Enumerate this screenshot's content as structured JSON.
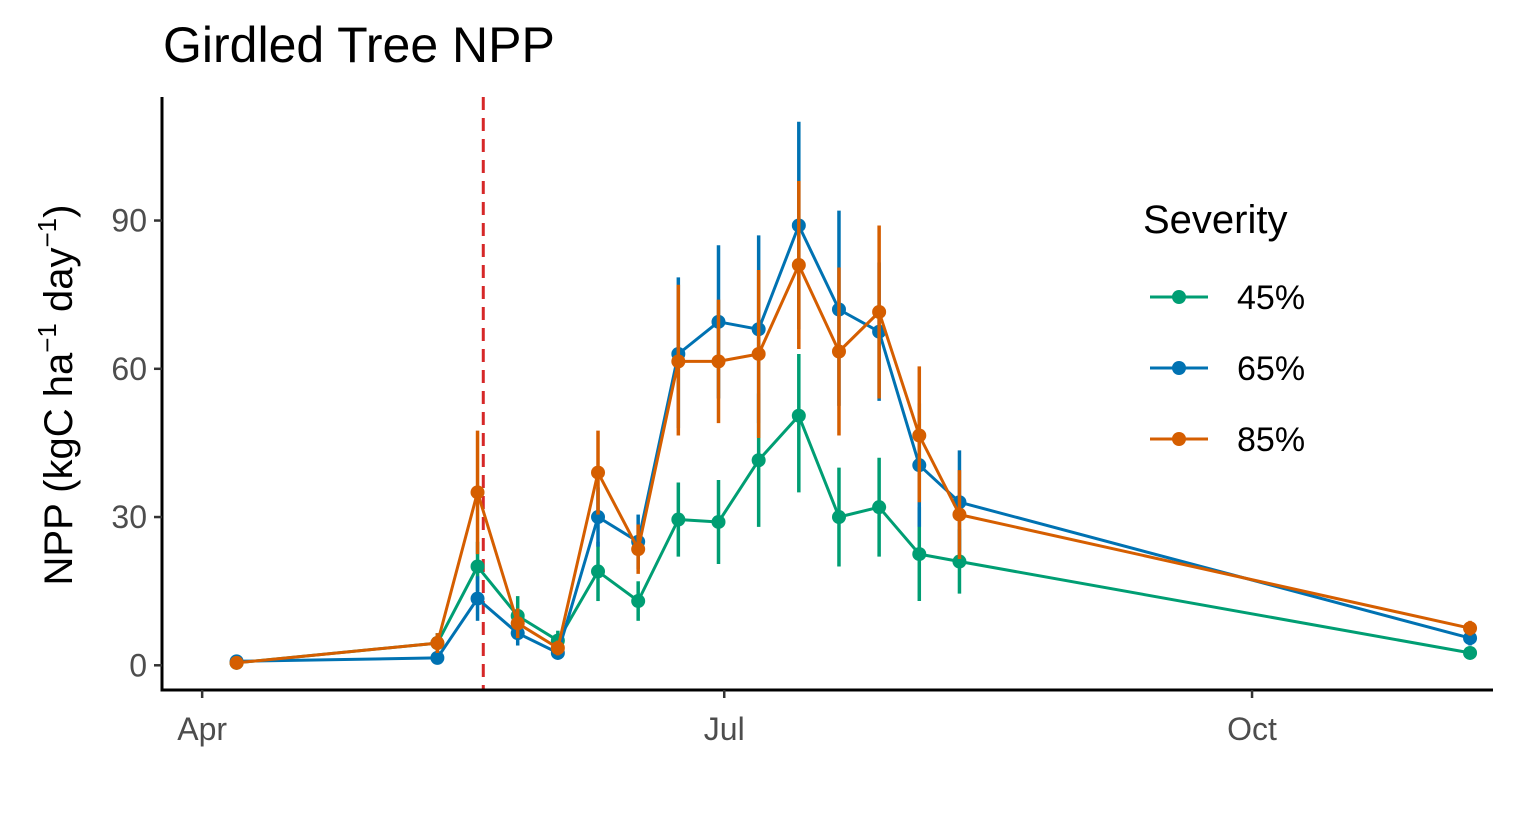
{
  "chart_data": {
    "type": "line",
    "title": "Girdled Tree NPP",
    "ylabel_parts": [
      "NPP (kgC ha",
      "−1",
      " day",
      "−1",
      ")"
    ],
    "xlabel": "",
    "ylim": [
      -5,
      115
    ],
    "y_ticks": [
      0,
      30,
      60,
      90
    ],
    "x_domain": [
      "2021-03-25",
      "2021-11-12"
    ],
    "x_ticks": [
      {
        "date": "2021-04-01",
        "label": "Apr"
      },
      {
        "date": "2021-07-01",
        "label": "Jul"
      },
      {
        "date": "2021-10-01",
        "label": "Oct"
      }
    ],
    "reference_line": {
      "date": "2021-05-20",
      "color": "#d62728",
      "style": "dashed"
    },
    "grid": false,
    "legend": {
      "title": "Severity",
      "position": "right"
    },
    "series": [
      {
        "name": "45%",
        "color": "#009E73",
        "points": [
          {
            "x": "2021-04-07",
            "y": 0.5,
            "lo": 0,
            "hi": 1.5
          },
          {
            "x": "2021-05-12",
            "y": 4.5,
            "lo": 2.5,
            "hi": 6.5
          },
          {
            "x": "2021-05-19",
            "y": 20,
            "lo": 15,
            "hi": 25
          },
          {
            "x": "2021-05-26",
            "y": 10,
            "lo": 6,
            "hi": 14
          },
          {
            "x": "2021-06-02",
            "y": 5,
            "lo": 3,
            "hi": 7
          },
          {
            "x": "2021-06-09",
            "y": 19,
            "lo": 13,
            "hi": 25
          },
          {
            "x": "2021-06-16",
            "y": 13,
            "lo": 9,
            "hi": 17
          },
          {
            "x": "2021-06-23",
            "y": 29.5,
            "lo": 22,
            "hi": 37
          },
          {
            "x": "2021-06-30",
            "y": 29,
            "lo": 20.5,
            "hi": 37.5
          },
          {
            "x": "2021-07-07",
            "y": 41.5,
            "lo": 28,
            "hi": 55
          },
          {
            "x": "2021-07-14",
            "y": 50.5,
            "lo": 35,
            "hi": 63
          },
          {
            "x": "2021-07-21",
            "y": 30,
            "lo": 20,
            "hi": 40
          },
          {
            "x": "2021-07-28",
            "y": 32,
            "lo": 22,
            "hi": 42
          },
          {
            "x": "2021-08-04",
            "y": 22.5,
            "lo": 13,
            "hi": 32
          },
          {
            "x": "2021-08-11",
            "y": 21,
            "lo": 14.5,
            "hi": 27.5
          },
          {
            "x": "2021-11-08",
            "y": 2.5,
            "lo": 1.5,
            "hi": 3.5
          }
        ]
      },
      {
        "name": "65%",
        "color": "#0072B2",
        "points": [
          {
            "x": "2021-04-07",
            "y": 0.8,
            "lo": 0.2,
            "hi": 1.4
          },
          {
            "x": "2021-05-12",
            "y": 1.5,
            "lo": 0.5,
            "hi": 2.5
          },
          {
            "x": "2021-05-19",
            "y": 13.5,
            "lo": 9,
            "hi": 18
          },
          {
            "x": "2021-05-26",
            "y": 6.5,
            "lo": 4,
            "hi": 9
          },
          {
            "x": "2021-06-02",
            "y": 2.5,
            "lo": 1.5,
            "hi": 3.5
          },
          {
            "x": "2021-06-09",
            "y": 30,
            "lo": 24,
            "hi": 36
          },
          {
            "x": "2021-06-16",
            "y": 25,
            "lo": 19.5,
            "hi": 30.5
          },
          {
            "x": "2021-06-23",
            "y": 63,
            "lo": 48,
            "hi": 78.5
          },
          {
            "x": "2021-06-30",
            "y": 69.5,
            "lo": 54,
            "hi": 85
          },
          {
            "x": "2021-07-07",
            "y": 68,
            "lo": 49,
            "hi": 87
          },
          {
            "x": "2021-07-14",
            "y": 89,
            "lo": 68,
            "hi": 110
          },
          {
            "x": "2021-07-21",
            "y": 72,
            "lo": 52.5,
            "hi": 92
          },
          {
            "x": "2021-07-28",
            "y": 67.5,
            "lo": 53.5,
            "hi": 81.5
          },
          {
            "x": "2021-08-04",
            "y": 40.5,
            "lo": 28,
            "hi": 53
          },
          {
            "x": "2021-08-11",
            "y": 33,
            "lo": 23,
            "hi": 43.5
          },
          {
            "x": "2021-11-08",
            "y": 5.5,
            "lo": 4,
            "hi": 7
          }
        ]
      },
      {
        "name": "85%",
        "color": "#D55E00",
        "points": [
          {
            "x": "2021-04-07",
            "y": 0.5,
            "lo": 0,
            "hi": 1.5
          },
          {
            "x": "2021-05-12",
            "y": 4.5,
            "lo": 2.5,
            "hi": 6.5
          },
          {
            "x": "2021-05-19",
            "y": 35,
            "lo": 22.5,
            "hi": 47.5
          },
          {
            "x": "2021-05-26",
            "y": 8.5,
            "lo": 5.5,
            "hi": 11.5
          },
          {
            "x": "2021-06-02",
            "y": 3.5,
            "lo": 2,
            "hi": 5
          },
          {
            "x": "2021-06-09",
            "y": 39,
            "lo": 30.5,
            "hi": 47.5
          },
          {
            "x": "2021-06-16",
            "y": 23.5,
            "lo": 18.5,
            "hi": 28.5
          },
          {
            "x": "2021-06-23",
            "y": 61.5,
            "lo": 46.5,
            "hi": 77
          },
          {
            "x": "2021-06-30",
            "y": 61.5,
            "lo": 49,
            "hi": 74
          },
          {
            "x": "2021-07-07",
            "y": 63,
            "lo": 46,
            "hi": 80
          },
          {
            "x": "2021-07-14",
            "y": 81,
            "lo": 64,
            "hi": 98
          },
          {
            "x": "2021-07-21",
            "y": 63.5,
            "lo": 46.5,
            "hi": 80.5
          },
          {
            "x": "2021-07-28",
            "y": 71.5,
            "lo": 54,
            "hi": 89
          },
          {
            "x": "2021-08-04",
            "y": 46.5,
            "lo": 33,
            "hi": 60.5
          },
          {
            "x": "2021-08-11",
            "y": 30.5,
            "lo": 21.5,
            "hi": 39.5
          },
          {
            "x": "2021-11-08",
            "y": 7.5,
            "lo": 6,
            "hi": 9
          }
        ]
      }
    ]
  }
}
